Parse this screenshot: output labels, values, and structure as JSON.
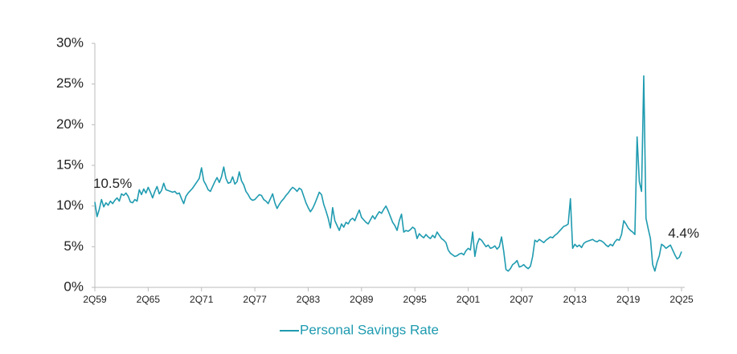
{
  "chart_data": {
    "type": "line",
    "categories": [
      "2Q59",
      null,
      null,
      null,
      null,
      null,
      null,
      null,
      null,
      null,
      null,
      null,
      null,
      null,
      null,
      null,
      null,
      null,
      null,
      null,
      null,
      null,
      null,
      null,
      "2Q65",
      null,
      null,
      null,
      null,
      null,
      null,
      null,
      null,
      null,
      null,
      null,
      null,
      null,
      null,
      null,
      null,
      null,
      null,
      null,
      null,
      null,
      null,
      null,
      "2Q71",
      null,
      null,
      null,
      null,
      null,
      null,
      null,
      null,
      null,
      null,
      null,
      null,
      null,
      null,
      null,
      null,
      null,
      null,
      null,
      null,
      null,
      null,
      null,
      "2Q77",
      null,
      null,
      null,
      null,
      null,
      null,
      null,
      null,
      null,
      null,
      null,
      null,
      null,
      null,
      null,
      null,
      null,
      null,
      null,
      null,
      null,
      null,
      null,
      "2Q83",
      null,
      null,
      null,
      null,
      null,
      null,
      null,
      null,
      null,
      null,
      null,
      null,
      null,
      null,
      null,
      null,
      null,
      null,
      null,
      null,
      null,
      null,
      null,
      "2Q89",
      null,
      null,
      null,
      null,
      null,
      null,
      null,
      null,
      null,
      null,
      null,
      null,
      null,
      null,
      null,
      null,
      null,
      null,
      null,
      null,
      null,
      null,
      null,
      "2Q95",
      null,
      null,
      null,
      null,
      null,
      null,
      null,
      null,
      null,
      null,
      null,
      null,
      null,
      null,
      null,
      null,
      null,
      null,
      null,
      null,
      null,
      null,
      null,
      "2Q01",
      null,
      null,
      null,
      null,
      null,
      null,
      null,
      null,
      null,
      null,
      null,
      null,
      null,
      null,
      null,
      null,
      null,
      null,
      null,
      null,
      null,
      null,
      null,
      "2Q07",
      null,
      null,
      null,
      null,
      null,
      null,
      null,
      null,
      null,
      null,
      null,
      null,
      null,
      null,
      null,
      null,
      null,
      null,
      null,
      null,
      null,
      null,
      null,
      "2Q13",
      null,
      null,
      null,
      null,
      null,
      null,
      null,
      null,
      null,
      null,
      null,
      null,
      null,
      null,
      null,
      null,
      null,
      null,
      null,
      null,
      null,
      null,
      null,
      "2Q19",
      null,
      null,
      null,
      null,
      null,
      null,
      null,
      null,
      null,
      null,
      null,
      null,
      null,
      null,
      null,
      null,
      null,
      null,
      null,
      null,
      null,
      null,
      null,
      "2Q25"
    ],
    "series": [
      {
        "name": "Personal Savings Rate",
        "color": "#1f9bb0",
        "values": [
          10.5,
          8.7,
          9.6,
          10.8,
          9.9,
          10.4,
          10.1,
          10.6,
          10.3,
          10.7,
          11.0,
          10.6,
          11.5,
          11.3,
          11.6,
          11.2,
          10.5,
          10.4,
          10.8,
          10.6,
          12.0,
          11.4,
          12.1,
          11.6,
          12.3,
          11.7,
          11.0,
          11.8,
          12.4,
          11.5,
          11.9,
          12.8,
          12.0,
          11.9,
          11.8,
          11.7,
          11.8,
          11.5,
          11.6,
          10.9,
          10.3,
          11.2,
          11.6,
          11.9,
          12.2,
          12.6,
          13.0,
          13.4,
          14.7,
          13.1,
          12.6,
          12.0,
          11.8,
          12.4,
          13.0,
          13.5,
          12.9,
          13.6,
          14.8,
          13.4,
          12.8,
          12.9,
          13.6,
          12.7,
          13.0,
          14.2,
          13.1,
          12.6,
          11.8,
          11.4,
          10.9,
          10.7,
          10.8,
          11.1,
          11.4,
          11.3,
          10.8,
          10.6,
          10.3,
          10.9,
          11.5,
          10.4,
          9.7,
          10.2,
          10.6,
          10.9,
          11.3,
          11.6,
          12.0,
          12.3,
          12.1,
          11.8,
          12.2,
          12.0,
          11.2,
          10.4,
          9.8,
          9.3,
          9.7,
          10.3,
          11.0,
          11.7,
          11.4,
          10.2,
          9.4,
          8.5,
          7.3,
          9.8,
          8.2,
          7.6,
          7.0,
          7.8,
          7.4,
          8.0,
          7.8,
          8.3,
          8.5,
          8.2,
          8.9,
          9.5,
          8.6,
          8.3,
          8.0,
          7.8,
          8.3,
          8.8,
          8.4,
          8.9,
          9.3,
          9.1,
          9.6,
          10.0,
          9.4,
          8.7,
          8.0,
          7.6,
          7.0,
          8.2,
          9.0,
          6.8,
          7.0,
          6.9,
          7.1,
          7.4,
          7.2,
          6.0,
          6.6,
          6.3,
          6.1,
          6.5,
          6.2,
          6.0,
          6.4,
          6.1,
          6.8,
          6.4,
          6.0,
          5.8,
          5.5,
          4.6,
          4.2,
          4.0,
          3.8,
          3.9,
          4.1,
          4.2,
          4.0,
          4.5,
          4.8,
          4.6,
          6.8,
          3.8,
          5.3,
          6.0,
          5.8,
          5.4,
          5.0,
          5.2,
          4.8,
          4.9,
          5.1,
          4.7,
          5.0,
          6.2,
          4.4,
          2.2,
          2.0,
          2.3,
          2.8,
          3.0,
          3.3,
          2.5,
          2.6,
          2.8,
          2.5,
          2.3,
          2.6,
          3.8,
          5.8,
          5.6,
          5.9,
          5.7,
          5.5,
          5.8,
          6.0,
          6.2,
          6.1,
          6.4,
          6.6,
          6.9,
          7.2,
          7.5,
          7.6,
          7.8,
          10.9,
          4.8,
          5.3,
          5.0,
          5.2,
          4.9,
          5.4,
          5.6,
          5.7,
          5.8,
          5.9,
          5.7,
          5.6,
          5.8,
          5.7,
          5.5,
          5.2,
          5.0,
          5.3,
          5.1,
          5.6,
          5.9,
          5.8,
          6.5,
          8.2,
          7.8,
          7.3,
          7.0,
          6.8,
          6.5,
          18.5,
          13.0,
          11.8,
          26.0,
          8.5,
          7.2,
          6.0,
          2.8,
          2.0,
          3.1,
          3.9,
          5.3,
          5.1,
          4.8,
          5.0,
          5.2,
          4.6,
          4.0,
          3.5,
          3.7,
          4.4
        ],
        "value_labels": {
          "0": "10.5%",
          "264": "4.4%"
        }
      }
    ],
    "ylim": [
      0,
      30
    ],
    "yticks": [
      {
        "value": 0,
        "label": "0%"
      },
      {
        "value": 5,
        "label": "5%"
      },
      {
        "value": 10,
        "label": "10%"
      },
      {
        "value": 15,
        "label": "15%"
      },
      {
        "value": 20,
        "label": "20%"
      },
      {
        "value": 25,
        "label": "25%"
      },
      {
        "value": 30,
        "label": "30%"
      }
    ],
    "grid": false,
    "legend": "bottom"
  }
}
